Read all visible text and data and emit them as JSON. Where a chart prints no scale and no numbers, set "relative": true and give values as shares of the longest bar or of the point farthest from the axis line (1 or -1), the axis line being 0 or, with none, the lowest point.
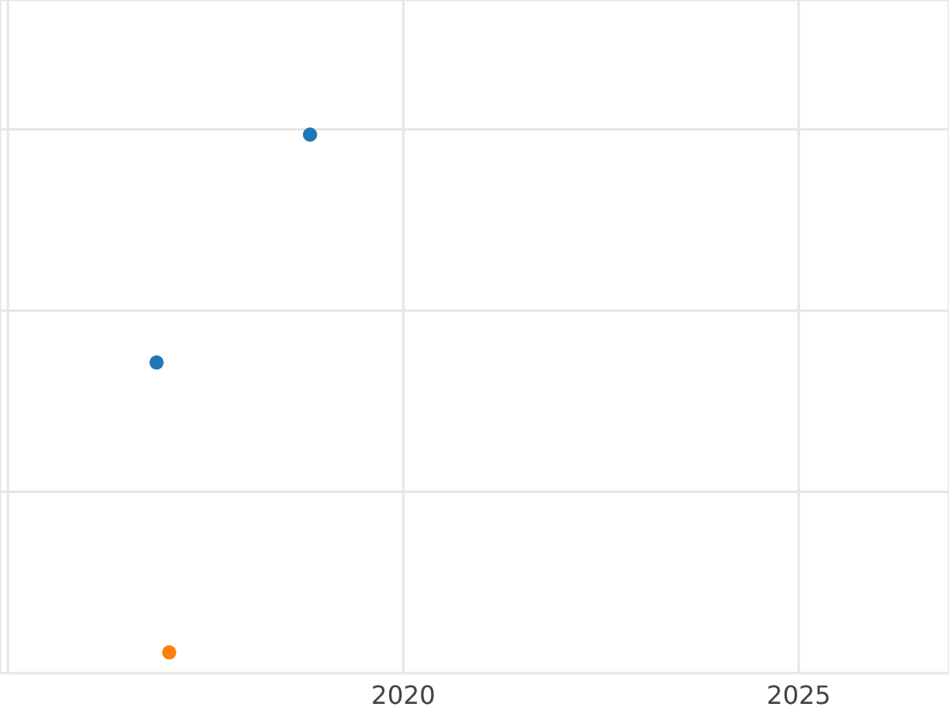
{
  "chart_data": {
    "type": "scatter",
    "relative": true,
    "xlim": [
      2014.9,
      2026.9
    ],
    "xticks": [
      {
        "value": 2015,
        "label": null
      },
      2020,
      2025
    ],
    "grid": true,
    "marker": "circle",
    "legend": false,
    "series": [
      {
        "color": "#1f77b4",
        "x": [
          2018.82,
          2016.88
        ],
        "values": [
          1,
          0.56
        ]
      },
      {
        "color": "#ff7f0e",
        "x": [
          2017.04
        ],
        "values": [
          0
        ]
      }
    ]
  }
}
